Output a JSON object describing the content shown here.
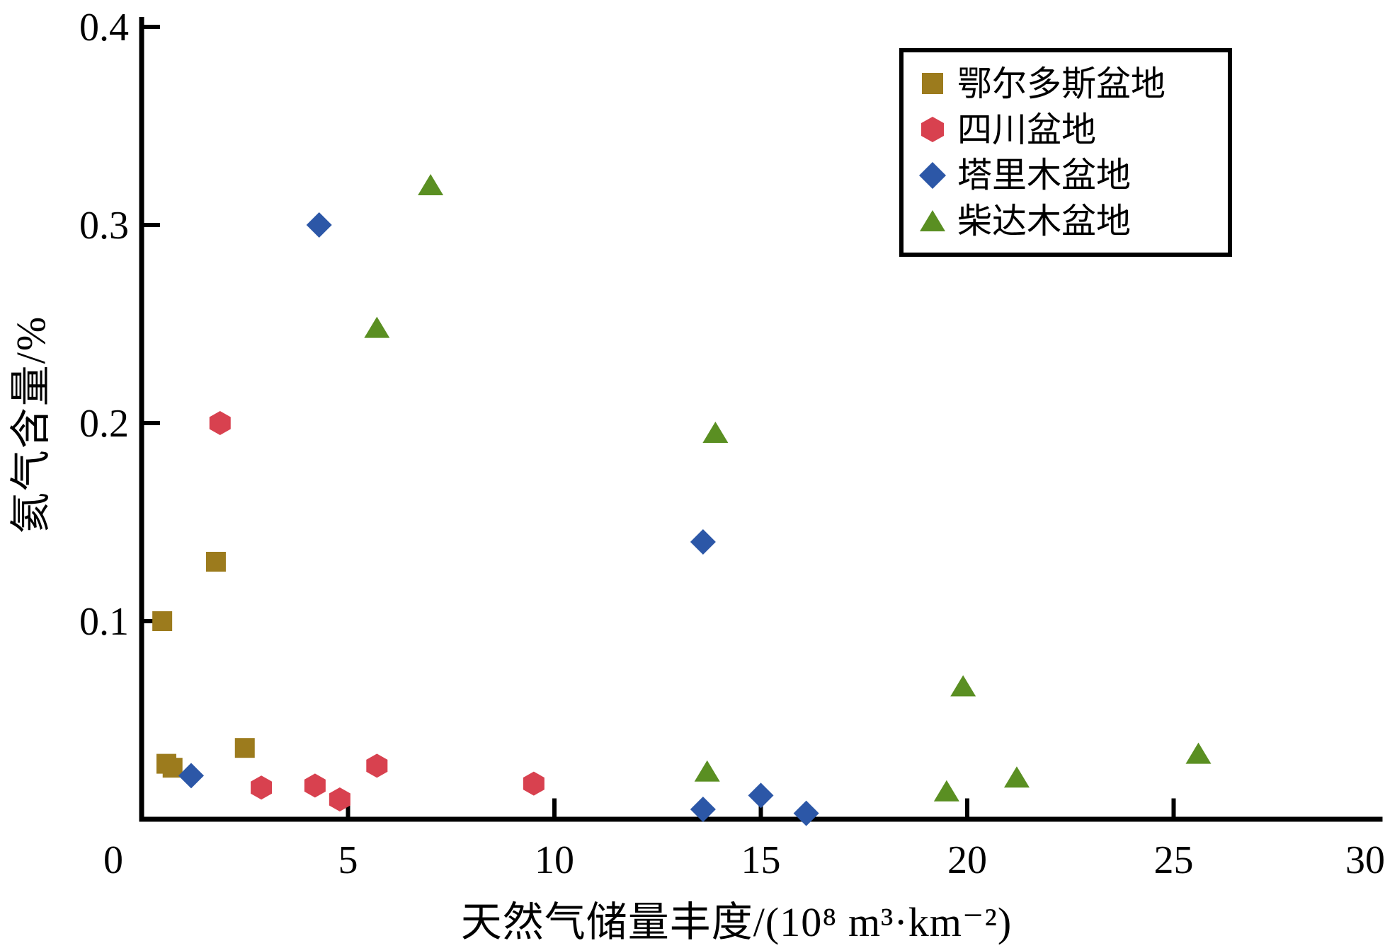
{
  "figure": {
    "background": "#ffffff",
    "text_color": "#000000"
  },
  "axes": {
    "x": {
      "label": "天然气储量丰度/(10⁸ m³·km⁻²)",
      "tick_labels": [
        "0",
        "5",
        "10",
        "15",
        "20",
        "25",
        "30"
      ],
      "ticks": [
        0,
        5,
        10,
        15,
        20,
        25,
        30
      ]
    },
    "y": {
      "label": "氦气含量/%",
      "tick_labels": [
        "0.1",
        "0.2",
        "0.3",
        "0.4"
      ],
      "ticks": [
        0.1,
        0.2,
        0.3,
        0.4
      ]
    }
  },
  "legend": {
    "position": "top-right",
    "border_color": "#000000"
  },
  "chart_data": {
    "type": "scatter",
    "title": "",
    "xlabel": "天然气储量丰度/(10⁸ m³·km⁻²)",
    "ylabel": "氦气含量/%",
    "xlim": [
      0,
      30
    ],
    "ylim": [
      0,
      0.4
    ],
    "grid": false,
    "legend_position": "top-right",
    "series": [
      {
        "name": "鄂尔多斯盆地",
        "marker": "square",
        "color": "#9C7B1D",
        "points": [
          [
            0.5,
            0.1
          ],
          [
            1.8,
            0.13
          ],
          [
            0.6,
            0.028
          ],
          [
            0.75,
            0.026
          ],
          [
            2.5,
            0.036
          ]
        ]
      },
      {
        "name": "四川盆地",
        "marker": "hexagon",
        "color": "#D8414F",
        "points": [
          [
            1.9,
            0.2
          ],
          [
            2.9,
            0.016
          ],
          [
            4.2,
            0.017
          ],
          [
            4.8,
            0.01
          ],
          [
            5.7,
            0.027
          ],
          [
            9.5,
            0.018
          ]
        ]
      },
      {
        "name": "塔里木盆地",
        "marker": "diamond",
        "color": "#2C57A7",
        "points": [
          [
            1.2,
            0.022
          ],
          [
            4.3,
            0.3
          ],
          [
            13.6,
            0.14
          ],
          [
            13.6,
            0.005
          ],
          [
            15.0,
            0.012
          ],
          [
            16.1,
            0.003
          ]
        ]
      },
      {
        "name": "柴达木盆地",
        "marker": "triangle",
        "color": "#5A8F22",
        "points": [
          [
            5.7,
            0.248
          ],
          [
            7.0,
            0.32
          ],
          [
            13.7,
            0.024
          ],
          [
            13.9,
            0.195
          ],
          [
            19.5,
            0.014
          ],
          [
            19.9,
            0.067
          ],
          [
            21.2,
            0.021
          ],
          [
            25.6,
            0.033
          ]
        ]
      }
    ]
  }
}
